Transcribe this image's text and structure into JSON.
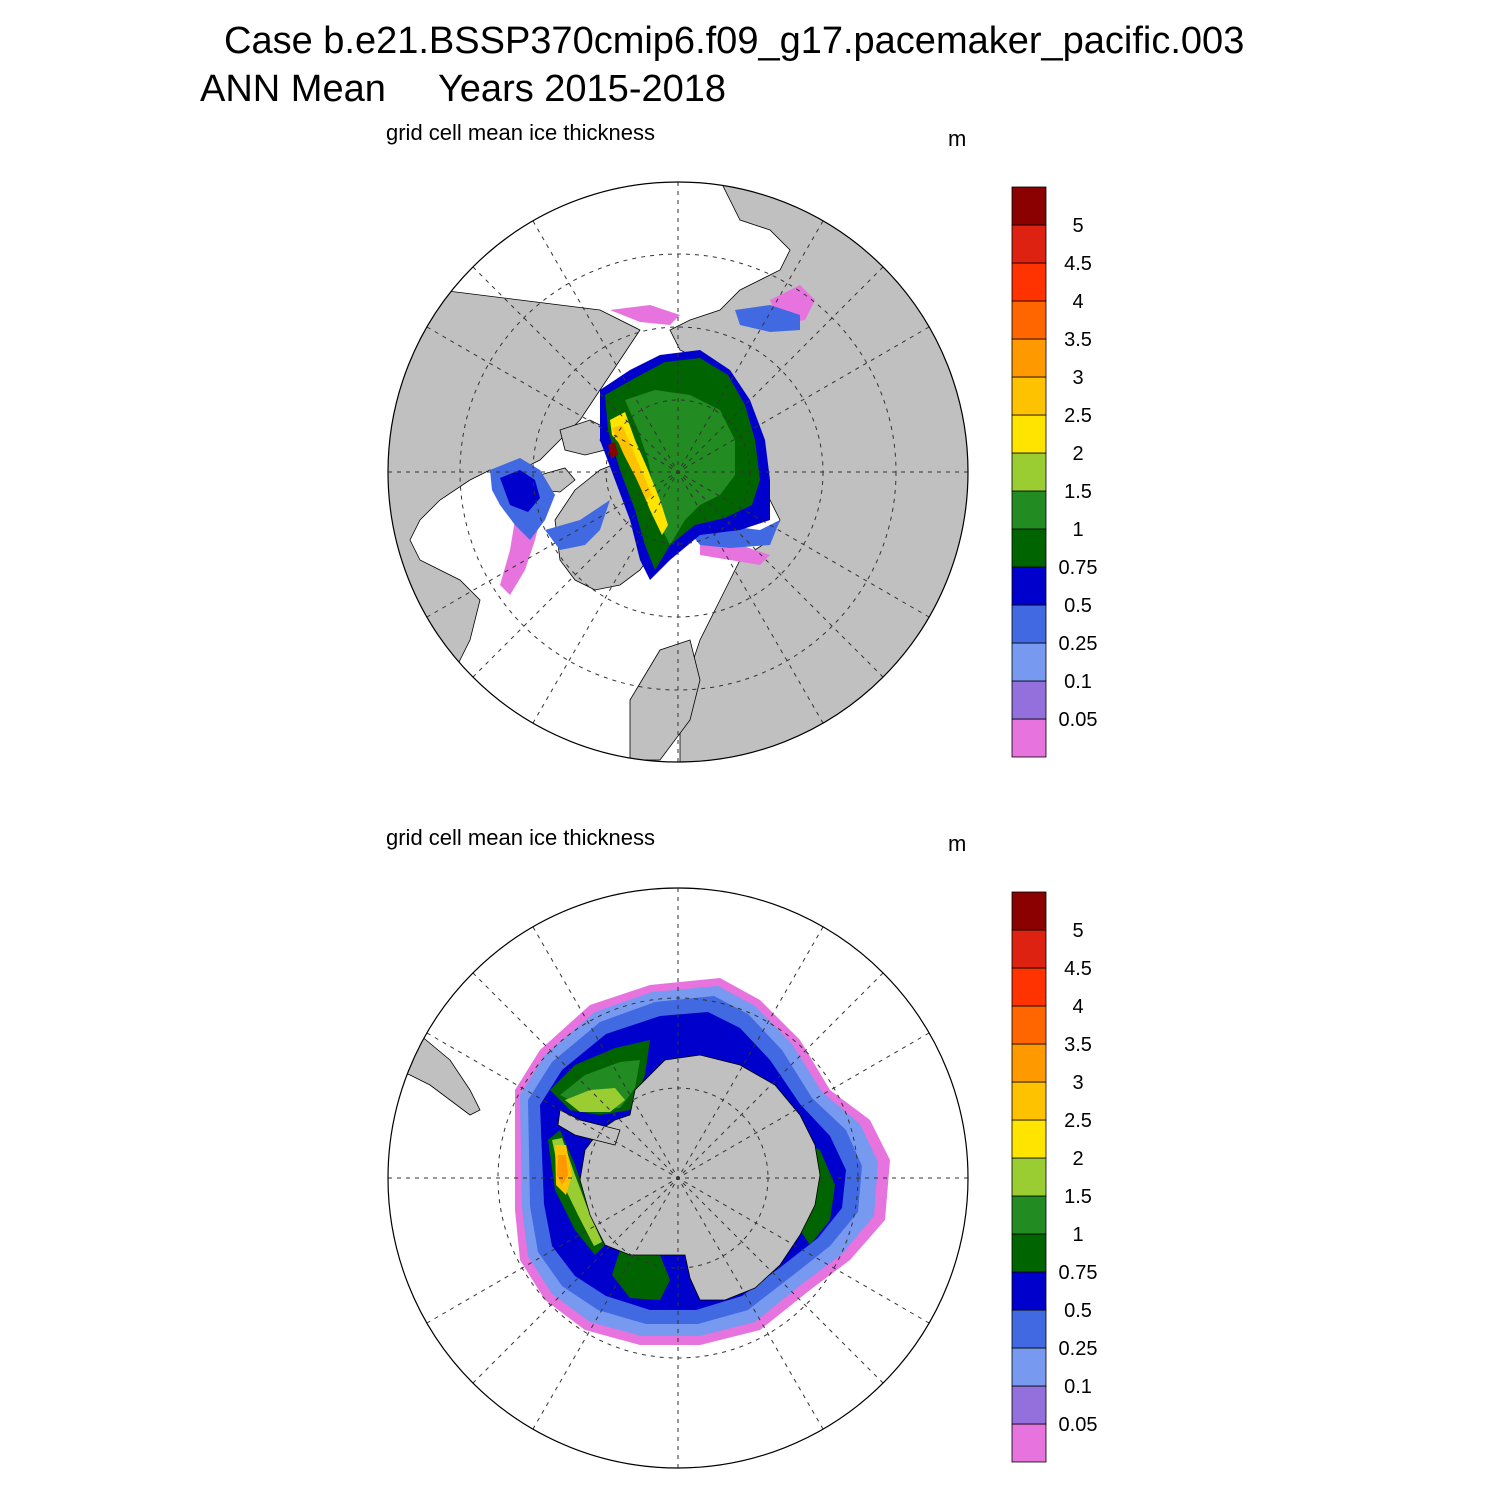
{
  "header": {
    "title_line1": "Case b.e21.BSSP370cmip6.f09_g17.pacemaker_pacific.003",
    "title_line2": "ANN Mean     Years 2015-2018"
  },
  "colors": {
    "land": "#c0c0c0",
    "ocean": "#ffffff",
    "levels": [
      "#e673de",
      "#9370db",
      "#7799f0",
      "#4169e1",
      "#0000cd",
      "#006400",
      "#228b22",
      "#9acd32",
      "#ffe400",
      "#ffc200",
      "#ff9900",
      "#ff6600",
      "#ff3300",
      "#dd2211",
      "#8b0000"
    ]
  },
  "colorbar": {
    "labels": [
      "0.05",
      "0.1",
      "0.25",
      "0.5",
      "0.75",
      "1",
      "1.5",
      "2",
      "2.5",
      "3",
      "3.5",
      "4",
      "4.5",
      "5"
    ]
  },
  "panels": [
    {
      "id": "north",
      "variable_label": "grid cell mean ice thickness",
      "units": "m",
      "hemisphere": "Northern"
    },
    {
      "id": "south",
      "variable_label": "grid cell mean ice thickness",
      "units": "m",
      "hemisphere": "Southern"
    }
  ]
}
